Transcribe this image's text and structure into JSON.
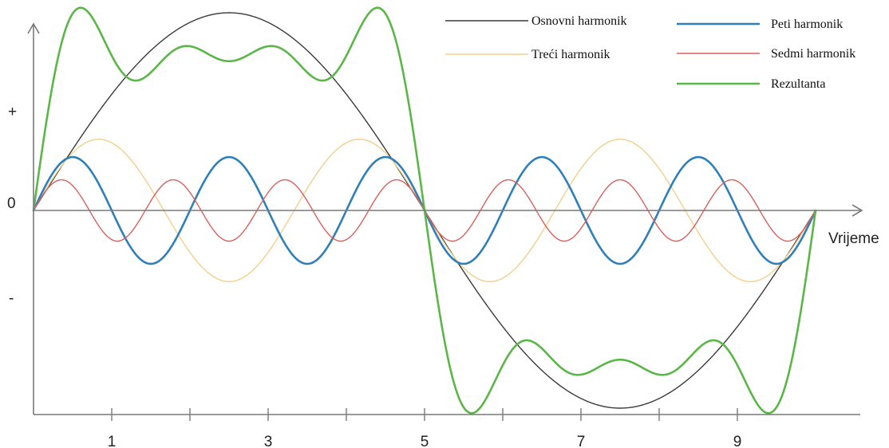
{
  "chart_data": {
    "type": "line",
    "xlabel": "Vrijeme",
    "y_marks": [
      "+",
      "0",
      "-"
    ],
    "xlim": [
      0,
      10
    ],
    "ylim": [
      -1.05,
      1.05
    ],
    "grid": false,
    "legend_position": "top-right",
    "x_tick_labels": [
      "1",
      "3",
      "5",
      "7",
      "9"
    ],
    "x_tick_positions": [
      1,
      2,
      3,
      4,
      5,
      6,
      7,
      8,
      9
    ],
    "x_labeled_ticks": [
      1,
      3,
      5,
      7,
      9
    ],
    "series": [
      {
        "name": "Osnovni harmonik",
        "harmonic": 1,
        "amplitude": 1.0,
        "color": "#3a3a3a",
        "width": 1.4
      },
      {
        "name": "Treći harmonik",
        "harmonic": 3,
        "amplitude": 0.36,
        "color": "#f3cf8c",
        "width": 1.4
      },
      {
        "name": "Peti harmonik",
        "harmonic": 5,
        "amplitude": 0.27,
        "color": "#2f7fb8",
        "width": 2.6
      },
      {
        "name": "Sedmi harmonik",
        "harmonic": 7,
        "amplitude": 0.155,
        "color": "#d9605c",
        "width": 1.4
      },
      {
        "name": "Rezultanta",
        "harmonic": 0,
        "amplitude": 0,
        "color": "#5ab646",
        "width": 2.6,
        "sum_of": [
          1,
          3,
          5,
          7
        ]
      }
    ],
    "period": 10
  }
}
